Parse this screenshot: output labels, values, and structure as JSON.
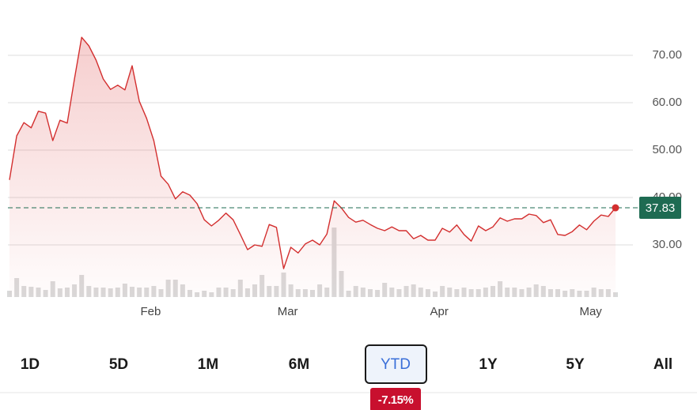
{
  "chart_data": {
    "type": "line",
    "categories": [
      null,
      null,
      null,
      null,
      null,
      null,
      null,
      null,
      null,
      null,
      null,
      null,
      null,
      null,
      null,
      null,
      null,
      null,
      null,
      null,
      "Feb",
      null,
      null,
      null,
      null,
      null,
      null,
      null,
      null,
      null,
      null,
      null,
      null,
      null,
      null,
      null,
      null,
      null,
      null,
      "Mar",
      null,
      null,
      null,
      null,
      null,
      null,
      null,
      null,
      null,
      null,
      null,
      null,
      null,
      null,
      null,
      null,
      null,
      null,
      null,
      null,
      "Apr",
      null,
      null,
      null,
      null,
      null,
      null,
      null,
      null,
      null,
      null,
      null,
      null,
      null,
      null,
      null,
      null,
      null,
      null,
      null,
      null,
      "May",
      null,
      null,
      null
    ],
    "series": [
      {
        "color": "#d32f2f",
        "values": [
          43.7,
          53,
          55.8,
          54.7,
          58.2,
          57.8,
          52,
          56.3,
          55.7,
          65,
          73.8,
          72,
          69,
          65,
          62.8,
          63.7,
          62.7,
          67.8,
          60.3,
          56.7,
          52,
          44.5,
          42.8,
          39.7,
          41.2,
          40.5,
          38.7,
          35.3,
          34,
          35.2,
          36.7,
          35.3,
          32.2,
          29,
          30,
          29.7,
          34.3,
          33.7,
          25,
          29.5,
          28.3,
          30.2,
          31,
          30,
          32.3,
          39.3,
          37.8,
          35.8,
          34.8,
          35.2,
          34.3,
          33.5,
          33,
          33.8,
          33,
          33,
          31.3,
          32,
          31,
          31,
          33.5,
          32.7,
          34.2,
          32.2,
          30.8,
          34,
          33,
          33.8,
          35.7,
          35,
          35.5,
          35.5,
          36.5,
          36.2,
          34.7,
          35.3,
          32.2,
          32,
          32.8,
          34.2,
          33.2,
          35,
          36.3,
          36,
          37.83
        ]
      }
    ],
    "volume": {
      "color": "#d9d9d9",
      "values": [
        8,
        24,
        14,
        13,
        12,
        9,
        20,
        11,
        12,
        16,
        28,
        14,
        12,
        12,
        11,
        12,
        17,
        13,
        12,
        12,
        14,
        10,
        22,
        22,
        16,
        9,
        6,
        8,
        6,
        12,
        12,
        10,
        22,
        11,
        16,
        28,
        14,
        14,
        31,
        16,
        10,
        10,
        9,
        16,
        12,
        88,
        33,
        8,
        14,
        12,
        10,
        9,
        18,
        12,
        10,
        14,
        16,
        12,
        10,
        7,
        14,
        12,
        10,
        12,
        10,
        10,
        12,
        14,
        20,
        12,
        12,
        10,
        12,
        16,
        14,
        10,
        10,
        8,
        10,
        8,
        8,
        12,
        10,
        10,
        6
      ]
    },
    "ylim": [
      20,
      80
    ],
    "yticks": [
      {
        "value": 30,
        "label": "30.00"
      },
      {
        "value": 40,
        "label": "40.00"
      },
      {
        "value": 50,
        "label": "50.00"
      },
      {
        "value": 60,
        "label": "60.00"
      },
      {
        "value": 70,
        "label": "70.00"
      }
    ],
    "grid": true,
    "last_price_color": "#1e6b52"
  },
  "range_selector": {
    "options": [
      "1D",
      "5D",
      "1M",
      "6M",
      "YTD",
      "1Y",
      "5Y",
      "All"
    ],
    "selected": 4,
    "change": "-7.15%"
  }
}
